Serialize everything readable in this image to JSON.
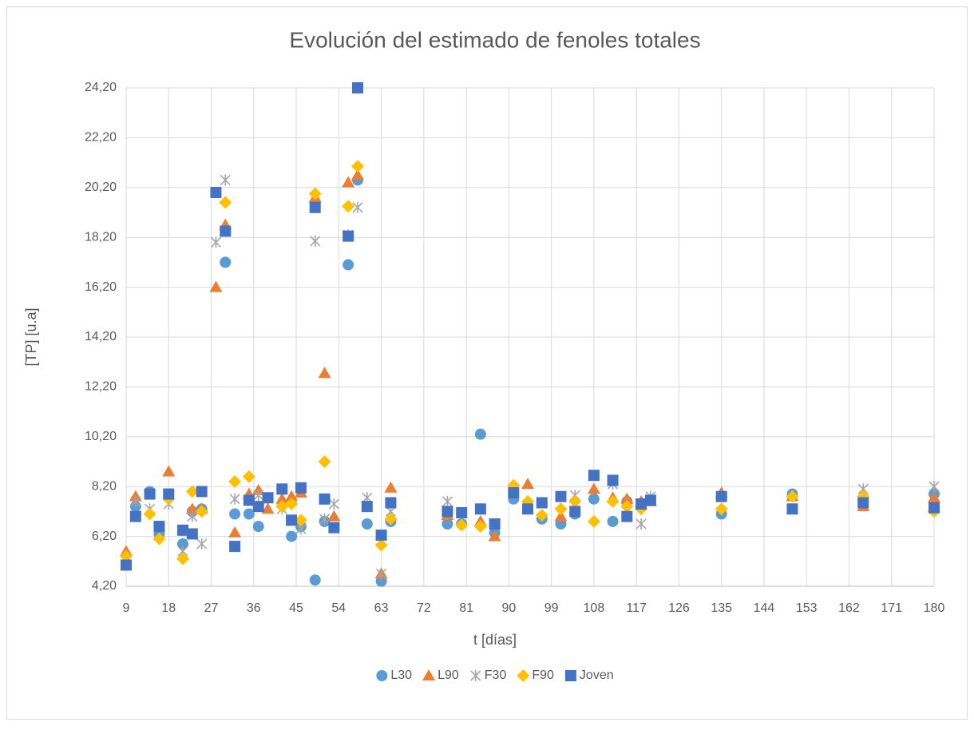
{
  "chart_data": {
    "type": "scatter",
    "title": "Evolución del estimado de fenoles totales",
    "x_label": "t [días]",
    "y_label": "[TP] [u.a]",
    "x": [
      9,
      11,
      14,
      16,
      18,
      21,
      23,
      25,
      28,
      30,
      32,
      35,
      37,
      39,
      42,
      44,
      46,
      49,
      51,
      53,
      56,
      58,
      60,
      63,
      65,
      77,
      80,
      84,
      87,
      91,
      94,
      97,
      101,
      104,
      108,
      112,
      115,
      118,
      120,
      135,
      150,
      165,
      180
    ],
    "series": [
      {
        "name": "L30",
        "color": "#5b9bd5",
        "marker": "circle",
        "values": [
          5.1,
          7.4,
          8.0,
          6.3,
          null,
          5.9,
          7.2,
          7.3,
          null,
          17.2,
          7.1,
          7.1,
          6.6,
          null,
          8.1,
          6.2,
          6.6,
          4.45,
          6.8,
          null,
          17.1,
          20.5,
          6.7,
          4.4,
          6.8,
          6.7,
          6.7,
          10.3,
          6.35,
          7.7,
          null,
          6.9,
          6.7,
          7.1,
          7.7,
          6.8,
          7.6,
          null,
          null,
          7.1,
          7.9,
          7.6,
          7.9
        ]
      },
      {
        "name": "L90",
        "color": "#ed7d31",
        "marker": "triangle",
        "values": [
          5.6,
          7.8,
          null,
          null,
          8.8,
          null,
          7.3,
          7.3,
          16.2,
          18.7,
          6.35,
          7.9,
          8.05,
          7.3,
          7.7,
          7.8,
          7.95,
          19.8,
          12.75,
          7.0,
          20.4,
          20.7,
          null,
          4.7,
          8.15,
          7.05,
          null,
          6.8,
          6.2,
          null,
          8.3,
          null,
          7.0,
          null,
          8.1,
          7.75,
          7.7,
          7.6,
          7.6,
          7.95,
          7.8,
          7.4,
          7.75
        ]
      },
      {
        "name": "F30",
        "color": "#a5a5a5",
        "marker": "asterisk",
        "values": [
          null,
          7.6,
          7.3,
          null,
          7.5,
          5.6,
          7.0,
          5.9,
          18.0,
          20.5,
          7.7,
          null,
          7.85,
          null,
          7.3,
          null,
          6.5,
          18.05,
          6.9,
          7.5,
          18.3,
          19.4,
          7.75,
          4.7,
          7.2,
          7.6,
          null,
          null,
          null,
          null,
          null,
          null,
          null,
          7.85,
          null,
          8.3,
          null,
          6.7,
          7.8,
          null,
          null,
          8.1,
          8.2
        ]
      },
      {
        "name": "F90",
        "color": "#ffc000",
        "marker": "diamond",
        "values": [
          5.4,
          null,
          7.1,
          6.1,
          7.7,
          5.3,
          8.0,
          7.2,
          null,
          19.6,
          8.4,
          8.6,
          null,
          null,
          7.4,
          7.5,
          6.85,
          19.95,
          9.2,
          null,
          19.45,
          21.05,
          null,
          5.85,
          6.9,
          null,
          6.65,
          6.6,
          null,
          8.25,
          7.6,
          7.05,
          7.3,
          7.6,
          6.8,
          7.6,
          7.4,
          7.3,
          null,
          7.3,
          7.8,
          7.8,
          7.2
        ]
      },
      {
        "name": "Joven",
        "color": "#4472c4",
        "marker": "square",
        "values": [
          5.05,
          7.0,
          7.9,
          6.6,
          7.9,
          6.45,
          6.3,
          8.0,
          20.0,
          18.45,
          5.8,
          7.65,
          7.4,
          7.75,
          8.1,
          6.85,
          8.15,
          19.4,
          7.7,
          6.55,
          18.25,
          24.2,
          7.4,
          6.25,
          7.55,
          7.2,
          7.15,
          7.3,
          6.7,
          7.95,
          7.3,
          7.55,
          7.8,
          7.2,
          8.65,
          8.45,
          7.0,
          7.5,
          7.65,
          7.8,
          7.3,
          7.55,
          7.35
        ]
      }
    ],
    "xlim": [
      9,
      180
    ],
    "xticks": [
      9,
      18,
      27,
      36,
      45,
      54,
      63,
      72,
      81,
      90,
      99,
      108,
      117,
      126,
      135,
      144,
      153,
      162,
      171,
      180
    ],
    "ylim": [
      4.2,
      24.2
    ],
    "yticks": [
      {
        "value": 4.2,
        "label": "4,20"
      },
      {
        "value": 6.2,
        "label": "6,20"
      },
      {
        "value": 8.2,
        "label": "8,20"
      },
      {
        "value": 10.2,
        "label": "10,20"
      },
      {
        "value": 12.2,
        "label": "12,20"
      },
      {
        "value": 14.2,
        "label": "14,20"
      },
      {
        "value": 16.2,
        "label": "16,20"
      },
      {
        "value": 18.2,
        "label": "18,20"
      },
      {
        "value": 20.2,
        "label": "20,20"
      },
      {
        "value": 22.2,
        "label": "22,20"
      },
      {
        "value": 24.2,
        "label": "24,20"
      }
    ],
    "grid": true,
    "legend": "bottom"
  }
}
